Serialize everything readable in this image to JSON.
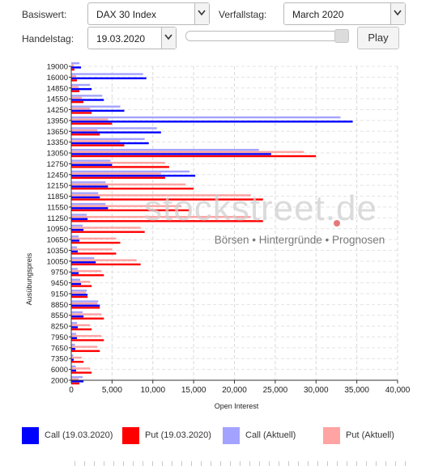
{
  "controls": {
    "basiswert_label": "Basiswert:",
    "basiswert_value": "DAX 30 Index",
    "verfallstag_label": "Verfallstag:",
    "verfallstag_value": "March 2020",
    "handelstag_label": "Handelstag:",
    "handelstag_value": "19.03.2020",
    "play_label": "Play",
    "slider_level": 1.0
  },
  "watermark": {
    "main": "stockstreet.de",
    "tagline": "Börsen • Hintergründe • Prognosen"
  },
  "legend": [
    {
      "label": "Call (19.03.2020)",
      "color": "#0000ff"
    },
    {
      "label": "Put (19.03.2020)",
      "color": "#ff0000"
    },
    {
      "label": "Call (Aktuell)",
      "color": "#a3a3ff"
    },
    {
      "label": "Put (Aktuell)",
      "color": "#ffa3a3"
    }
  ],
  "chart_data": {
    "type": "bar",
    "orientation": "horizontal",
    "xlabel": "Open Interest",
    "ylabel": "Ausübungspreis",
    "xlim": [
      0,
      40000
    ],
    "x_ticks": [
      "0",
      "5,000",
      "10,000",
      "15,000",
      "20,000",
      "25,000",
      "30,000",
      "35,000",
      "40,000"
    ],
    "y_ticks": [
      "19000",
      "16000",
      "14850",
      "14550",
      "14250",
      "13950",
      "13650",
      "13350",
      "13050",
      "12750",
      "12450",
      "12150",
      "11850",
      "11550",
      "11250",
      "10950",
      "10650",
      "10350",
      "10050",
      "9750",
      "9450",
      "9150",
      "8850",
      "8550",
      "8250",
      "7950",
      "7650",
      "7350",
      "6000",
      "2000"
    ],
    "grid": true,
    "colors": {
      "call_now": "#0000ff",
      "put_now": "#ff0000",
      "call_current": "#a3a3ff",
      "put_current": "#ffa3a3"
    },
    "categories": [
      "19000",
      "16000",
      "14850",
      "14550",
      "14250",
      "13950",
      "13650",
      "13350",
      "13050",
      "12750",
      "12450",
      "12150",
      "11850",
      "11550",
      "11250",
      "10950",
      "10650",
      "10350",
      "10050",
      "9750",
      "9450",
      "9150",
      "8850",
      "8550",
      "8250",
      "7950",
      "7650",
      "7350",
      "6000",
      "2000"
    ],
    "series": [
      {
        "name": "Call (19.03.2020)",
        "values": [
          1200,
          9200,
          2500,
          4000,
          6500,
          34500,
          11000,
          9500,
          24500,
          5000,
          15200,
          4500,
          3500,
          4500,
          2000,
          1500,
          1000,
          800,
          3000,
          900,
          1200,
          2000,
          3500,
          1500,
          800,
          700,
          500,
          300,
          600,
          1500
        ]
      },
      {
        "name": "Put (19.03.2020)",
        "values": [
          400,
          700,
          1000,
          1500,
          2500,
          5000,
          3500,
          6500,
          30000,
          12000,
          11500,
          15000,
          23500,
          14500,
          23500,
          9000,
          6000,
          5500,
          8500,
          4000,
          2500,
          2000,
          3500,
          4000,
          2500,
          4000,
          3500,
          1500,
          2500,
          1000
        ]
      },
      {
        "name": "Call (Aktuell)",
        "values": [
          1000,
          8800,
          2300,
          3800,
          6000,
          33000,
          10500,
          9000,
          23000,
          4800,
          14500,
          4200,
          3300,
          4200,
          1900,
          1400,
          900,
          700,
          2800,
          800,
          1100,
          1900,
          3300,
          1400,
          700,
          600,
          450,
          250,
          550,
          1400
        ]
      },
      {
        "name": "Put (Aktuell)",
        "values": [
          300,
          600,
          900,
          1300,
          2300,
          4500,
          3200,
          6000,
          28500,
          11500,
          11000,
          14000,
          22000,
          13500,
          22000,
          8500,
          5500,
          5000,
          8000,
          3700,
          2300,
          1800,
          3200,
          3700,
          2300,
          3700,
          3200,
          1300,
          2300,
          900
        ]
      }
    ]
  }
}
